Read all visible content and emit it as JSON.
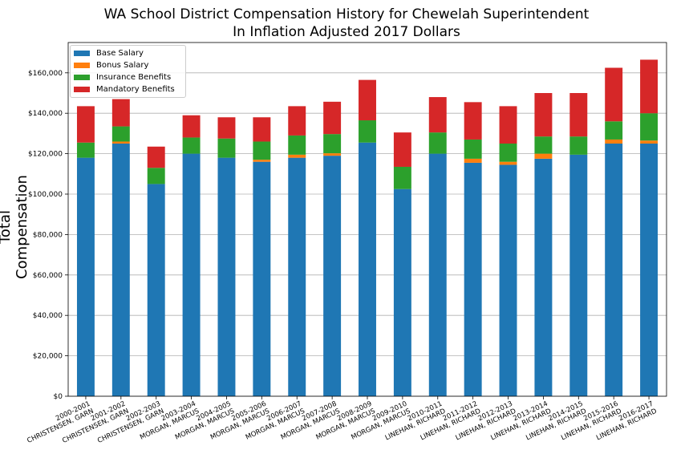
{
  "chart_data": {
    "type": "bar",
    "stacked": true,
    "title": "WA School District Compensation History for Chewelah Superintendent",
    "subtitle": "In Inflation Adjusted 2017 Dollars",
    "xlabel": "",
    "ylabel": "Total Compensation",
    "ylim": [
      0,
      175000
    ],
    "yticks": [
      0,
      20000,
      40000,
      60000,
      80000,
      100000,
      120000,
      140000,
      160000
    ],
    "ytick_labels": [
      "$0",
      "$20,000",
      "$40,000",
      "$60,000",
      "$80,000",
      "$100,000",
      "$120,000",
      "$140,000",
      "$160,000"
    ],
    "grid": "horizontal",
    "legend_position": "top-left",
    "categories": [
      "2000-2001\nCHRISTENSEN, GARN",
      "2001-2002\nCHRISTENSEN, GARN",
      "2002-2003\nCHRISTENSEN, GARN",
      "2003-2004\nMORGAN, MARCUS",
      "2004-2005\nMORGAN, MARCUS",
      "2005-2006\nMORGAN, MARCUS",
      "2006-2007\nMORGAN, MARCUS",
      "2007-2008\nMORGAN, MARCUS",
      "2008-2009\nMORGAN, MARCUS",
      "2009-2010\nMORGAN, MARCUS",
      "2010-2011\nLINEHAN, RICHARD",
      "2011-2012\nLINEHAN, RICHARD",
      "2012-2013\nLINEHAN, RICHARD",
      "2013-2014\nLINEHAN, RICHARD",
      "2014-2015\nLINEHAN, RICHARD",
      "2015-2016\nLINEHAN, RICHARD",
      "2016-2017\nLINEHAN, RICHARD"
    ],
    "series": [
      {
        "name": "Base Salary",
        "color": "#1f77b4",
        "values": [
          118000,
          125000,
          105000,
          120000,
          118000,
          116000,
          118000,
          119000,
          125500,
          102500,
          120000,
          115500,
          114500,
          117500,
          119500,
          125000,
          125000
        ]
      },
      {
        "name": "Bonus Salary",
        "color": "#ff7f0e",
        "values": [
          0,
          1000,
          0,
          0,
          0,
          1000,
          1500,
          1200,
          0,
          0,
          0,
          2000,
          1500,
          2500,
          0,
          2000,
          1500
        ]
      },
      {
        "name": "Insurance Benefits",
        "color": "#2ca02c",
        "values": [
          7500,
          7500,
          8000,
          8000,
          9500,
          9000,
          9500,
          9500,
          11000,
          11000,
          10500,
          9500,
          9000,
          8500,
          9000,
          9000,
          13500
        ]
      },
      {
        "name": "Mandatory Benefits",
        "color": "#d62728",
        "values": [
          18000,
          13500,
          10500,
          11000,
          10500,
          12000,
          14500,
          16000,
          20000,
          17000,
          17500,
          18500,
          18500,
          21500,
          21500,
          26500,
          26500
        ]
      }
    ]
  }
}
